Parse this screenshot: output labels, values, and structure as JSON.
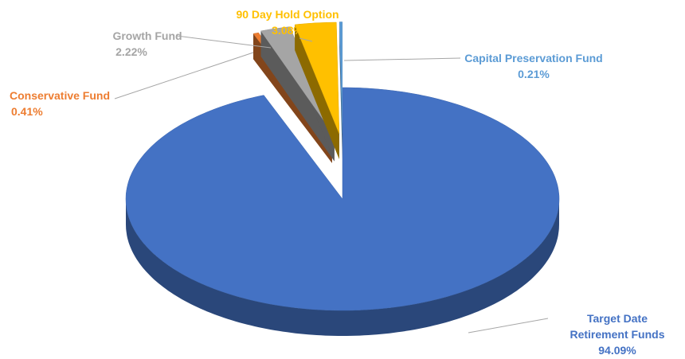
{
  "chart_data": {
    "type": "pie",
    "categories": [
      "Target Date Retirement Funds",
      "Conservative Fund",
      "Growth Fund",
      "90 Day Hold Option",
      "Capital Preservation Fund"
    ],
    "values": [
      94.09,
      0.41,
      2.22,
      3.08,
      0.21
    ],
    "value_labels": [
      "94.09%",
      "0.41%",
      "2.22%",
      "3.08%",
      "0.21%"
    ],
    "colors": [
      "#4472c4",
      "#ed7d31",
      "#a5a5a5",
      "#ffc000",
      "#5b9bd5"
    ]
  }
}
